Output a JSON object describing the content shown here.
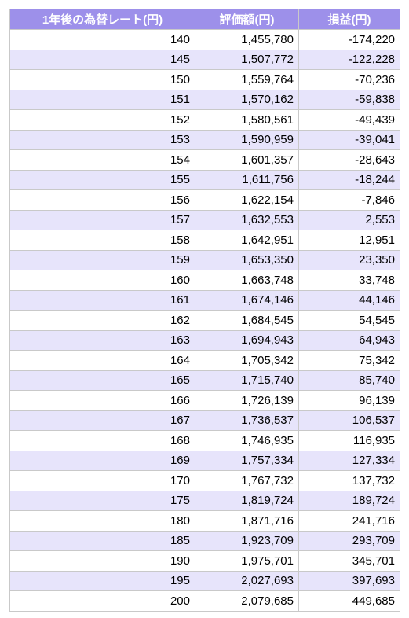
{
  "table": {
    "header": [
      "1年後の為替レート(円)",
      "評価額(円)",
      "損益(円)"
    ],
    "rows": [
      [
        "140",
        "1,455,780",
        "-174,220"
      ],
      [
        "145",
        "1,507,772",
        "-122,228"
      ],
      [
        "150",
        "1,559,764",
        "-70,236"
      ],
      [
        "151",
        "1,570,162",
        "-59,838"
      ],
      [
        "152",
        "1,580,561",
        "-49,439"
      ],
      [
        "153",
        "1,590,959",
        "-39,041"
      ],
      [
        "154",
        "1,601,357",
        "-28,643"
      ],
      [
        "155",
        "1,611,756",
        "-18,244"
      ],
      [
        "156",
        "1,622,154",
        "-7,846"
      ],
      [
        "157",
        "1,632,553",
        "2,553"
      ],
      [
        "158",
        "1,642,951",
        "12,951"
      ],
      [
        "159",
        "1,653,350",
        "23,350"
      ],
      [
        "160",
        "1,663,748",
        "33,748"
      ],
      [
        "161",
        "1,674,146",
        "44,146"
      ],
      [
        "162",
        "1,684,545",
        "54,545"
      ],
      [
        "163",
        "1,694,943",
        "64,943"
      ],
      [
        "164",
        "1,705,342",
        "75,342"
      ],
      [
        "165",
        "1,715,740",
        "85,740"
      ],
      [
        "166",
        "1,726,139",
        "96,139"
      ],
      [
        "167",
        "1,736,537",
        "106,537"
      ],
      [
        "168",
        "1,746,935",
        "116,935"
      ],
      [
        "169",
        "1,757,334",
        "127,334"
      ],
      [
        "170",
        "1,767,732",
        "137,732"
      ],
      [
        "175",
        "1,819,724",
        "189,724"
      ],
      [
        "180",
        "1,871,716",
        "241,716"
      ],
      [
        "185",
        "1,923,709",
        "293,709"
      ],
      [
        "190",
        "1,975,701",
        "345,701"
      ],
      [
        "195",
        "2,027,693",
        "397,693"
      ],
      [
        "200",
        "2,079,685",
        "449,685"
      ]
    ]
  }
}
